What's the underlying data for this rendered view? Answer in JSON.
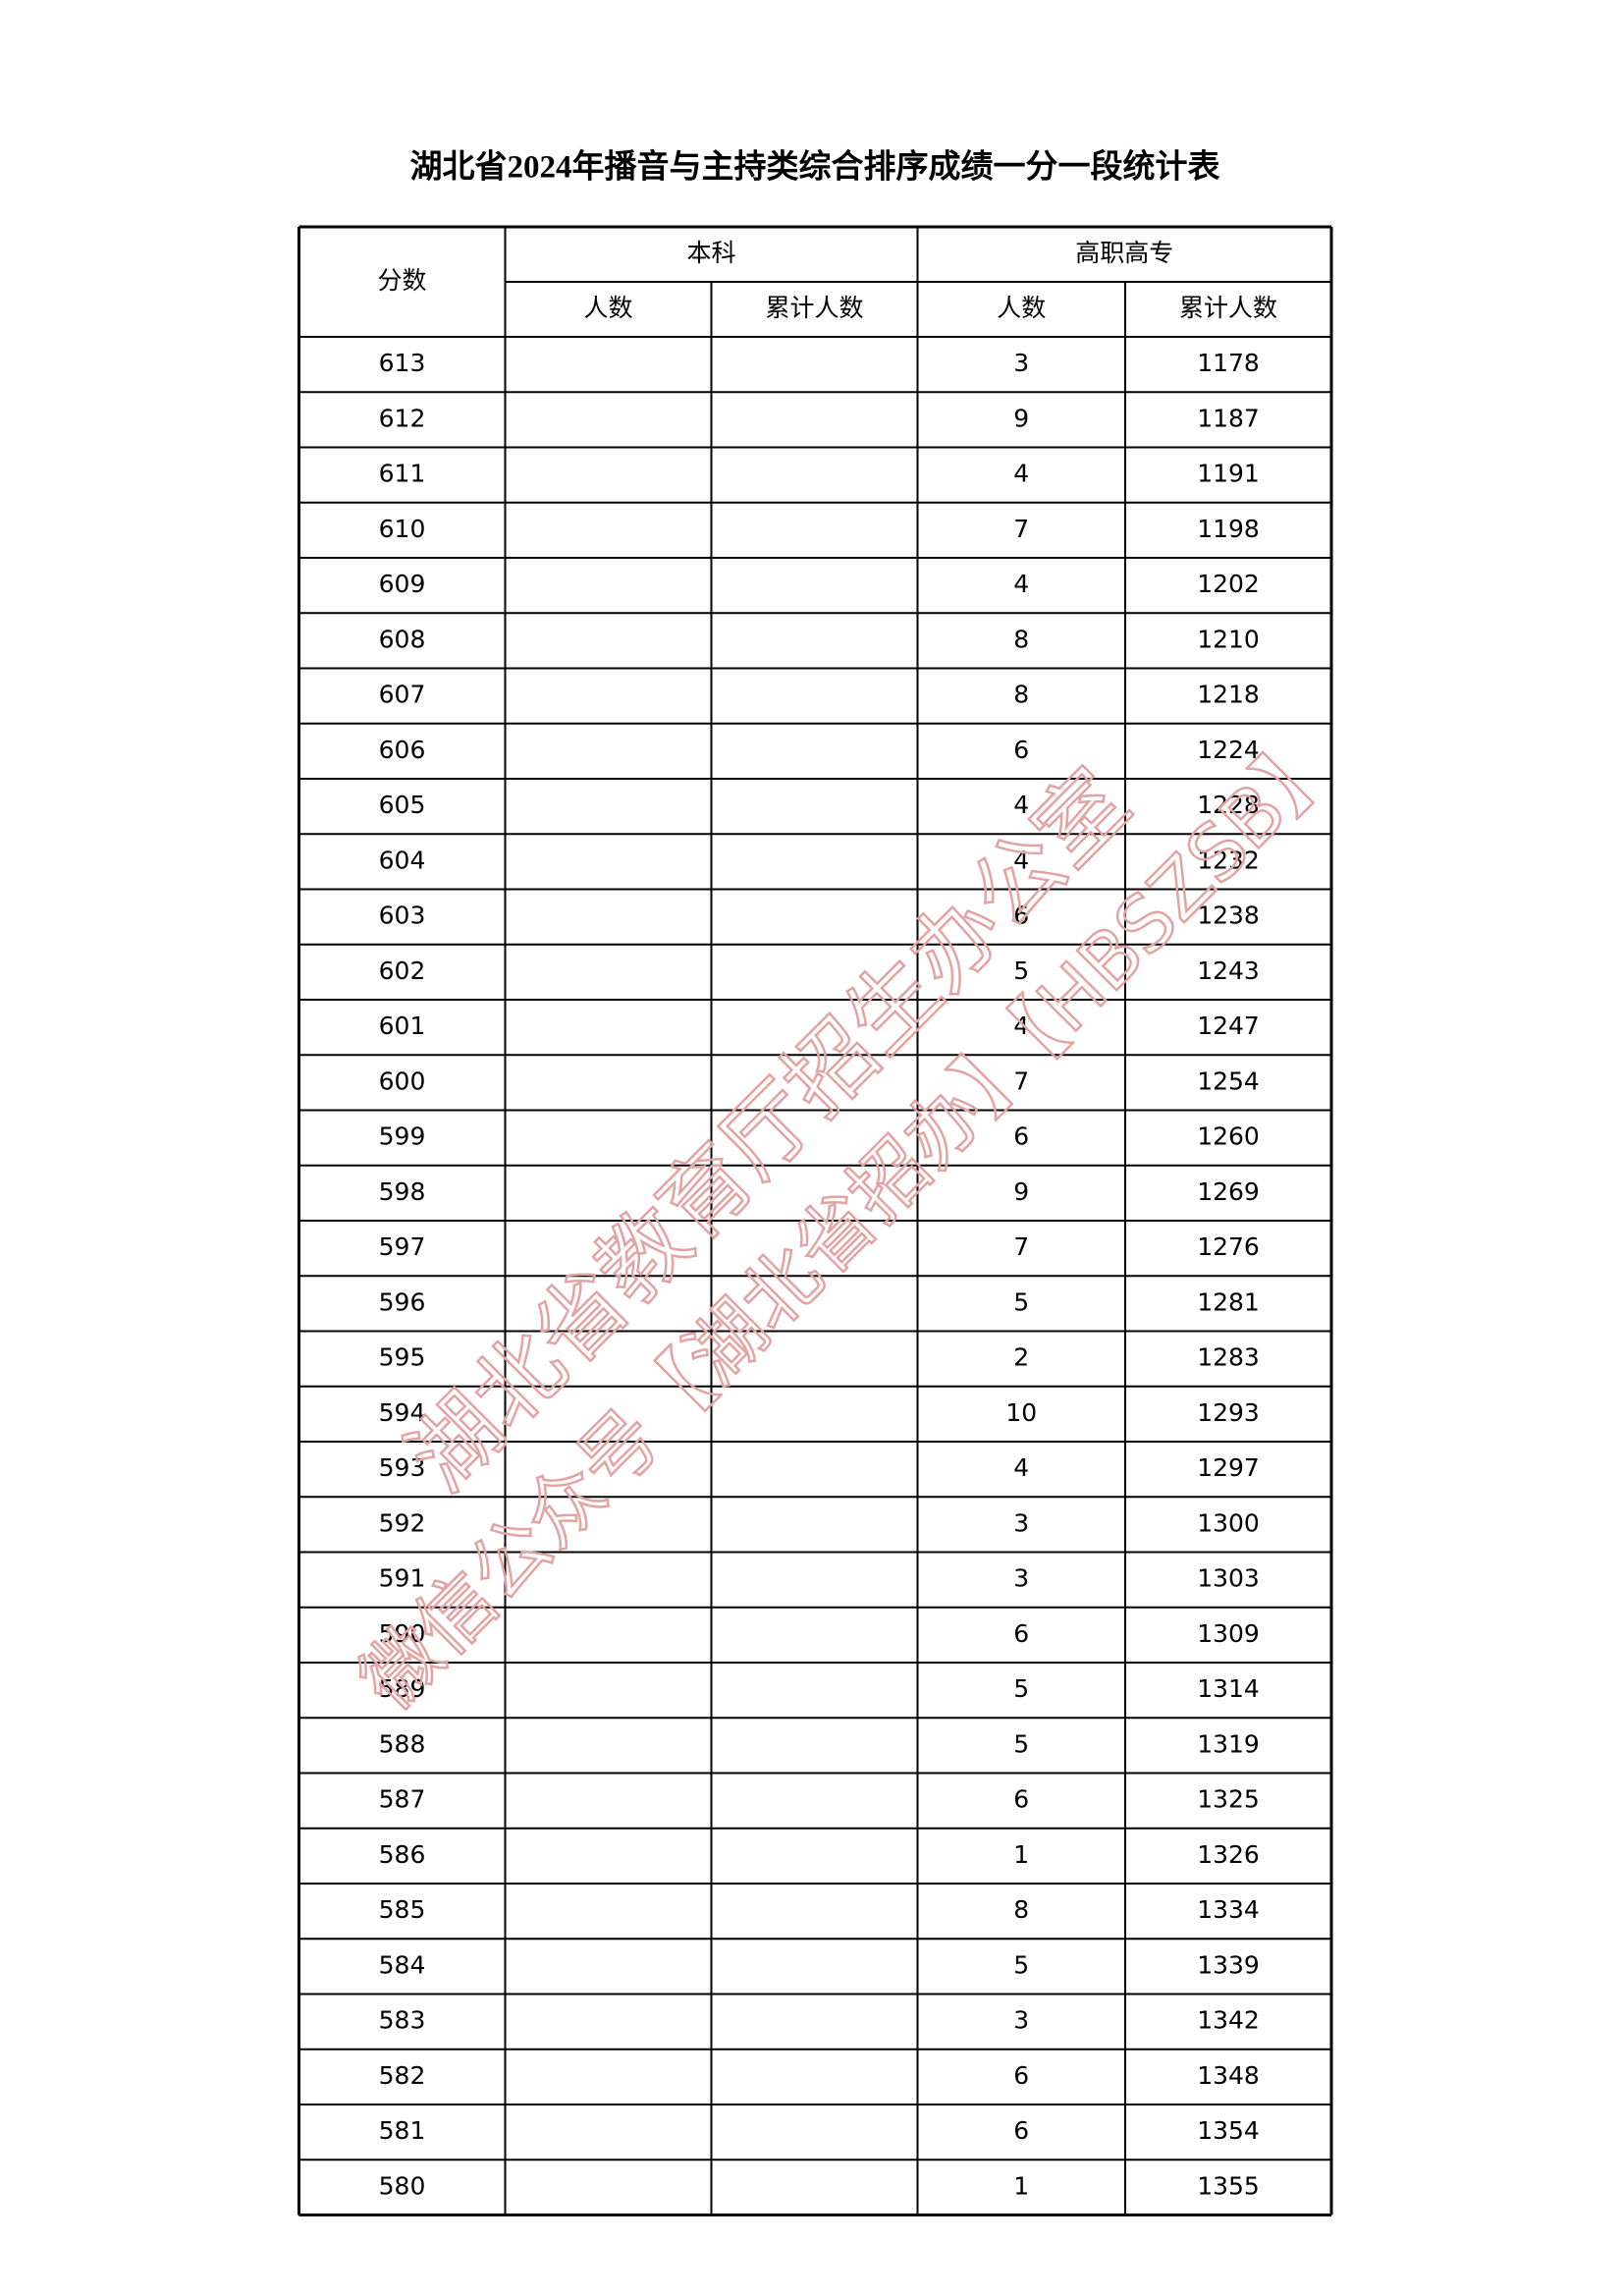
{
  "title": "湖北省2024年播音与主持类综合排序成绩一分一段统计表",
  "table": {
    "header": {
      "score": "分数",
      "benke": "本科",
      "gaozhi": "高职高专",
      "count": "人数",
      "cumulative": "累计人数",
      "count_2": "人数",
      "cumulative_2": "累计人数"
    },
    "rows": [
      [
        613,
        3,
        1178
      ],
      [
        612,
        9,
        1187
      ],
      [
        611,
        4,
        1191
      ],
      [
        610,
        7,
        1198
      ],
      [
        609,
        4,
        1202
      ],
      [
        608,
        8,
        1210
      ],
      [
        607,
        8,
        1218
      ],
      [
        606,
        6,
        1224
      ],
      [
        605,
        4,
        1228
      ],
      [
        604,
        4,
        1232
      ],
      [
        603,
        6,
        1238
      ],
      [
        602,
        5,
        1243
      ],
      [
        601,
        4,
        1247
      ],
      [
        600,
        7,
        1254
      ],
      [
        599,
        6,
        1260
      ],
      [
        598,
        9,
        1269
      ],
      [
        597,
        7,
        1276
      ],
      [
        596,
        5,
        1281
      ],
      [
        595,
        2,
        1283
      ],
      [
        594,
        10,
        1293
      ],
      [
        593,
        4,
        1297
      ],
      [
        592,
        3,
        1300
      ],
      [
        591,
        3,
        1303
      ],
      [
        590,
        6,
        1309
      ],
      [
        589,
        5,
        1314
      ],
      [
        588,
        5,
        1319
      ],
      [
        587,
        6,
        1325
      ],
      [
        586,
        1,
        1326
      ],
      [
        585,
        8,
        1334
      ],
      [
        584,
        5,
        1339
      ],
      [
        583,
        3,
        1342
      ],
      [
        582,
        6,
        1348
      ],
      [
        581,
        6,
        1354
      ],
      [
        580,
        1,
        1355
      ]
    ]
  },
  "watermark": [
    "湖北省教育厅招生办公室",
    "微信公众号【湖北省招办】【HBSZSB】"
  ]
}
